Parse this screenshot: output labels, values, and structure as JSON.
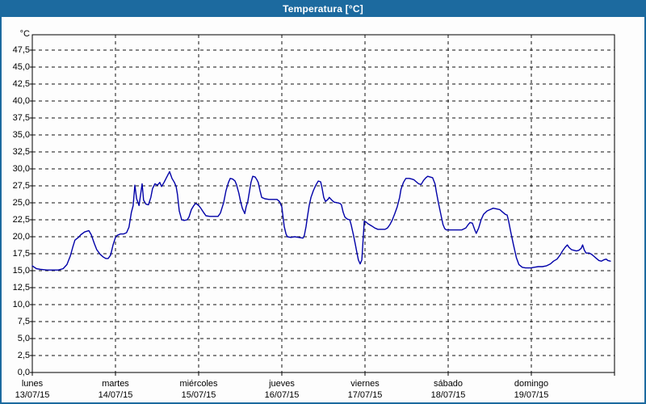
{
  "window": {
    "title": "Temperatura [°C]",
    "titlebar_color": "#1c6a9f",
    "border_color": "#1c6a9f",
    "background_color": "#fdfdfd"
  },
  "chart_data": {
    "type": "line",
    "title": "Temperatura [°C]",
    "unit_label": "°C",
    "grid": "dashed",
    "legend": "none",
    "line_color": "#0000a8",
    "ylim": [
      0,
      47.5
    ],
    "ytick_step": 2.5,
    "ytick_labels": [
      "0,0",
      "2,5",
      "5,0",
      "7,5",
      "10,0",
      "12,5",
      "15,0",
      "17,5",
      "20,0",
      "22,5",
      "25,0",
      "27,5",
      "30,0",
      "32,5",
      "35,0",
      "37,5",
      "40,0",
      "42,5",
      "45,0",
      "47,5"
    ],
    "x_hours_range": [
      0,
      168
    ],
    "days": [
      {
        "name": "lunes",
        "date": "13/07/15"
      },
      {
        "name": "martes",
        "date": "14/07/15"
      },
      {
        "name": "miércoles",
        "date": "15/07/15"
      },
      {
        "name": "jueves",
        "date": "16/07/15"
      },
      {
        "name": "viernes",
        "date": "17/07/15"
      },
      {
        "name": "sábado",
        "date": "18/07/15"
      },
      {
        "name": "domingo",
        "date": "19/07/15"
      }
    ],
    "series": [
      {
        "name": "Temperatura",
        "color": "#0000a8",
        "points": [
          [
            0,
            15.7
          ],
          [
            1.2,
            15.3
          ],
          [
            2.3,
            15.2
          ],
          [
            4.2,
            15.1
          ],
          [
            5.8,
            15.1
          ],
          [
            7.5,
            15.1
          ],
          [
            8.9,
            15.3
          ],
          [
            10,
            15.9
          ],
          [
            11,
            17.2
          ],
          [
            11.7,
            18.5
          ],
          [
            12.3,
            19.5
          ],
          [
            13.3,
            19.9
          ],
          [
            14,
            20.3
          ],
          [
            15.1,
            20.7
          ],
          [
            16.3,
            20.9
          ],
          [
            17,
            20.3
          ],
          [
            17.9,
            19
          ],
          [
            18.6,
            18.1
          ],
          [
            19.6,
            17.4
          ],
          [
            20.5,
            17
          ],
          [
            21.2,
            16.8
          ],
          [
            21.9,
            16.8
          ],
          [
            22.6,
            17.3
          ],
          [
            23.3,
            18.8
          ],
          [
            24,
            19.9
          ],
          [
            24.5,
            20.2
          ],
          [
            25.4,
            20.4
          ],
          [
            26.3,
            20.4
          ],
          [
            27.2,
            20.6
          ],
          [
            27.9,
            21.4
          ],
          [
            28.6,
            23.6
          ],
          [
            29.1,
            24.6
          ],
          [
            29.6,
            27.6
          ],
          [
            30.1,
            25.6
          ],
          [
            30.8,
            24.6
          ],
          [
            31.7,
            27.8
          ],
          [
            32.1,
            25.4
          ],
          [
            32.8,
            24.8
          ],
          [
            33.5,
            24.7
          ],
          [
            34.2,
            25.8
          ],
          [
            34.7,
            27.1
          ],
          [
            35.4,
            27.8
          ],
          [
            36.1,
            27.6
          ],
          [
            36.8,
            28
          ],
          [
            37.3,
            27.4
          ],
          [
            38,
            28
          ],
          [
            38.7,
            28.7
          ],
          [
            39.6,
            29.6
          ],
          [
            40.3,
            28.6
          ],
          [
            41,
            28
          ],
          [
            41.5,
            27.4
          ],
          [
            41.9,
            26.2
          ],
          [
            42.4,
            23.8
          ],
          [
            43.1,
            22.5
          ],
          [
            43.8,
            22.4
          ],
          [
            44.7,
            22.5
          ],
          [
            45.2,
            22.9
          ],
          [
            45.9,
            24
          ],
          [
            46.6,
            24.6
          ],
          [
            47.1,
            24.9
          ],
          [
            47.5,
            24.8
          ],
          [
            48,
            24.6
          ],
          [
            48.5,
            24.3
          ],
          [
            49.4,
            23.6
          ],
          [
            50.1,
            23.1
          ],
          [
            51.2,
            23
          ],
          [
            52.4,
            23
          ],
          [
            53.6,
            23
          ],
          [
            54.3,
            23.5
          ],
          [
            55.2,
            25
          ],
          [
            55.9,
            26.8
          ],
          [
            56.6,
            28
          ],
          [
            57.1,
            28.6
          ],
          [
            57.8,
            28.5
          ],
          [
            58.5,
            28.2
          ],
          [
            58.9,
            27.7
          ],
          [
            59.6,
            26.4
          ],
          [
            60.1,
            25.2
          ],
          [
            60.6,
            24.2
          ],
          [
            61.3,
            23.4
          ],
          [
            61.7,
            24.4
          ],
          [
            62.2,
            25.2
          ],
          [
            62.7,
            26.8
          ],
          [
            63.1,
            28
          ],
          [
            63.6,
            28.9
          ],
          [
            64.3,
            28.8
          ],
          [
            64.8,
            28.4
          ],
          [
            65.2,
            28
          ],
          [
            65.7,
            26.8
          ],
          [
            66.2,
            25.8
          ],
          [
            67.1,
            25.6
          ],
          [
            68.3,
            25.5
          ],
          [
            69.4,
            25.5
          ],
          [
            70.6,
            25.5
          ],
          [
            71.3,
            25.2
          ],
          [
            72,
            24.4
          ],
          [
            72.2,
            23.5
          ],
          [
            72.7,
            21.5
          ],
          [
            73.2,
            20.4
          ],
          [
            73.6,
            20
          ],
          [
            74.6,
            19.9
          ],
          [
            75.7,
            20
          ],
          [
            76.9,
            19.9
          ],
          [
            78.1,
            19.8
          ],
          [
            78.5,
            20.2
          ],
          [
            79,
            21.5
          ],
          [
            79.4,
            23
          ],
          [
            79.9,
            24.6
          ],
          [
            80.4,
            25.8
          ],
          [
            81.1,
            26.8
          ],
          [
            81.8,
            27.6
          ],
          [
            82.5,
            28.2
          ],
          [
            83.2,
            28.1
          ],
          [
            83.6,
            27.2
          ],
          [
            84.1,
            25.8
          ],
          [
            84.6,
            25.2
          ],
          [
            85.3,
            25.5
          ],
          [
            85.7,
            25.8
          ],
          [
            86.4,
            25.4
          ],
          [
            87.1,
            25.1
          ],
          [
            88.1,
            25
          ],
          [
            88.8,
            24.9
          ],
          [
            89.2,
            24.7
          ],
          [
            89.7,
            23.6
          ],
          [
            90.2,
            22.9
          ],
          [
            90.9,
            22.6
          ],
          [
            91.6,
            22.5
          ],
          [
            92,
            21.8
          ],
          [
            92.7,
            20.2
          ],
          [
            93.2,
            18.9
          ],
          [
            93.7,
            17.6
          ],
          [
            94.1,
            16.6
          ],
          [
            94.6,
            16
          ],
          [
            95.1,
            16.6
          ],
          [
            95.5,
            20
          ],
          [
            95.8,
            22.3
          ],
          [
            96.2,
            22.2
          ],
          [
            96.9,
            21.9
          ],
          [
            97.9,
            21.6
          ],
          [
            98.8,
            21.3
          ],
          [
            99.7,
            21.1
          ],
          [
            100.9,
            21.1
          ],
          [
            101.8,
            21.1
          ],
          [
            102.5,
            21.3
          ],
          [
            103.2,
            21.8
          ],
          [
            103.9,
            22.5
          ],
          [
            104.6,
            23.4
          ],
          [
            105.3,
            24.4
          ],
          [
            106,
            25.8
          ],
          [
            106.4,
            27
          ],
          [
            107.1,
            28
          ],
          [
            107.8,
            28.6
          ],
          [
            108.8,
            28.6
          ],
          [
            109.5,
            28.5
          ],
          [
            110.1,
            28.4
          ],
          [
            110.8,
            28.1
          ],
          [
            111.5,
            27.8
          ],
          [
            112.2,
            27.7
          ],
          [
            112.9,
            28.3
          ],
          [
            113.6,
            28.7
          ],
          [
            114.1,
            28.9
          ],
          [
            114.8,
            28.8
          ],
          [
            115.5,
            28.7
          ],
          [
            116.2,
            27.8
          ],
          [
            116.6,
            26.6
          ],
          [
            117.1,
            25.2
          ],
          [
            117.6,
            24
          ],
          [
            118.1,
            22.8
          ],
          [
            118.5,
            21.8
          ],
          [
            119,
            21.2
          ],
          [
            119.5,
            21
          ],
          [
            120.4,
            21
          ],
          [
            121.6,
            21
          ],
          [
            122.8,
            21
          ],
          [
            123.9,
            21
          ],
          [
            125.1,
            21.3
          ],
          [
            125.8,
            21.8
          ],
          [
            126.3,
            22.1
          ],
          [
            127,
            22
          ],
          [
            127.7,
            21
          ],
          [
            128.1,
            20.5
          ],
          [
            128.8,
            21.3
          ],
          [
            129.5,
            22.5
          ],
          [
            130.2,
            23.3
          ],
          [
            131.2,
            23.8
          ],
          [
            132.1,
            24
          ],
          [
            133,
            24.2
          ],
          [
            134,
            24.1
          ],
          [
            134.9,
            24
          ],
          [
            135.8,
            23.6
          ],
          [
            136.5,
            23.3
          ],
          [
            137,
            23.2
          ],
          [
            137.4,
            22.4
          ],
          [
            138.1,
            20.6
          ],
          [
            138.8,
            18.9
          ],
          [
            139.7,
            16.9
          ],
          [
            140.4,
            15.9
          ],
          [
            141.4,
            15.5
          ],
          [
            142.3,
            15.4
          ],
          [
            143.2,
            15.4
          ],
          [
            143.9,
            15.4
          ],
          [
            144.8,
            15.5
          ],
          [
            146,
            15.6
          ],
          [
            147.2,
            15.6
          ],
          [
            148.3,
            15.7
          ],
          [
            149.5,
            16
          ],
          [
            150.4,
            16.4
          ],
          [
            151.4,
            16.7
          ],
          [
            152.3,
            17.3
          ],
          [
            153,
            17.9
          ],
          [
            153.7,
            18.4
          ],
          [
            154.4,
            18.8
          ],
          [
            154.9,
            18.4
          ],
          [
            155.6,
            18.1
          ],
          [
            156.3,
            18
          ],
          [
            157,
            17.9
          ],
          [
            157.7,
            18
          ],
          [
            158.4,
            18.3
          ],
          [
            158.8,
            18.8
          ],
          [
            159.3,
            18
          ],
          [
            159.8,
            17.6
          ],
          [
            160.7,
            17.6
          ],
          [
            161.4,
            17.4
          ],
          [
            162.1,
            17.1
          ],
          [
            162.8,
            16.8
          ],
          [
            163.5,
            16.5
          ],
          [
            164.2,
            16.4
          ],
          [
            164.9,
            16.6
          ],
          [
            165.6,
            16.7
          ],
          [
            166.1,
            16.5
          ],
          [
            166.8,
            16.4
          ]
        ]
      }
    ]
  }
}
